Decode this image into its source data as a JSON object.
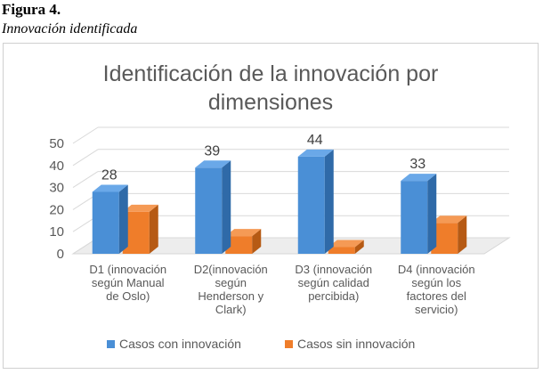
{
  "figure": {
    "label": "Figura 4.",
    "caption": "Innovación identificada"
  },
  "chart_data": {
    "type": "bar",
    "title_lines": [
      "Identificación de la innovación por",
      "dimensiones"
    ],
    "categories": [
      [
        "D1 (innovación",
        "según Manual",
        "de Oslo)"
      ],
      [
        "D2(innovación",
        "según",
        "Henderson y",
        "Clark)"
      ],
      [
        "D3 (innovación",
        "según calidad",
        "percibida)"
      ],
      [
        "D4 (innovación",
        "según los",
        "factores del",
        "servicio)"
      ]
    ],
    "series": [
      {
        "name": "Casos con innovación",
        "values": [
          28,
          39,
          44,
          33
        ],
        "color": "#4a8fd6",
        "side_color": "#2f6aa8",
        "top_color": "#6aa8e8",
        "data_labels": true
      },
      {
        "name": "Casos sin innovación",
        "values": [
          19,
          8,
          3,
          14
        ],
        "color": "#ef7d2a",
        "side_color": "#b65a14",
        "top_color": "#f59a55",
        "data_labels": false
      }
    ],
    "y_ticks": [
      "0",
      "10",
      "20",
      "30",
      "40",
      "50"
    ],
    "ylim": [
      0,
      50
    ],
    "grid": true,
    "legend": "bottom",
    "style": "3d-clustered-column"
  }
}
